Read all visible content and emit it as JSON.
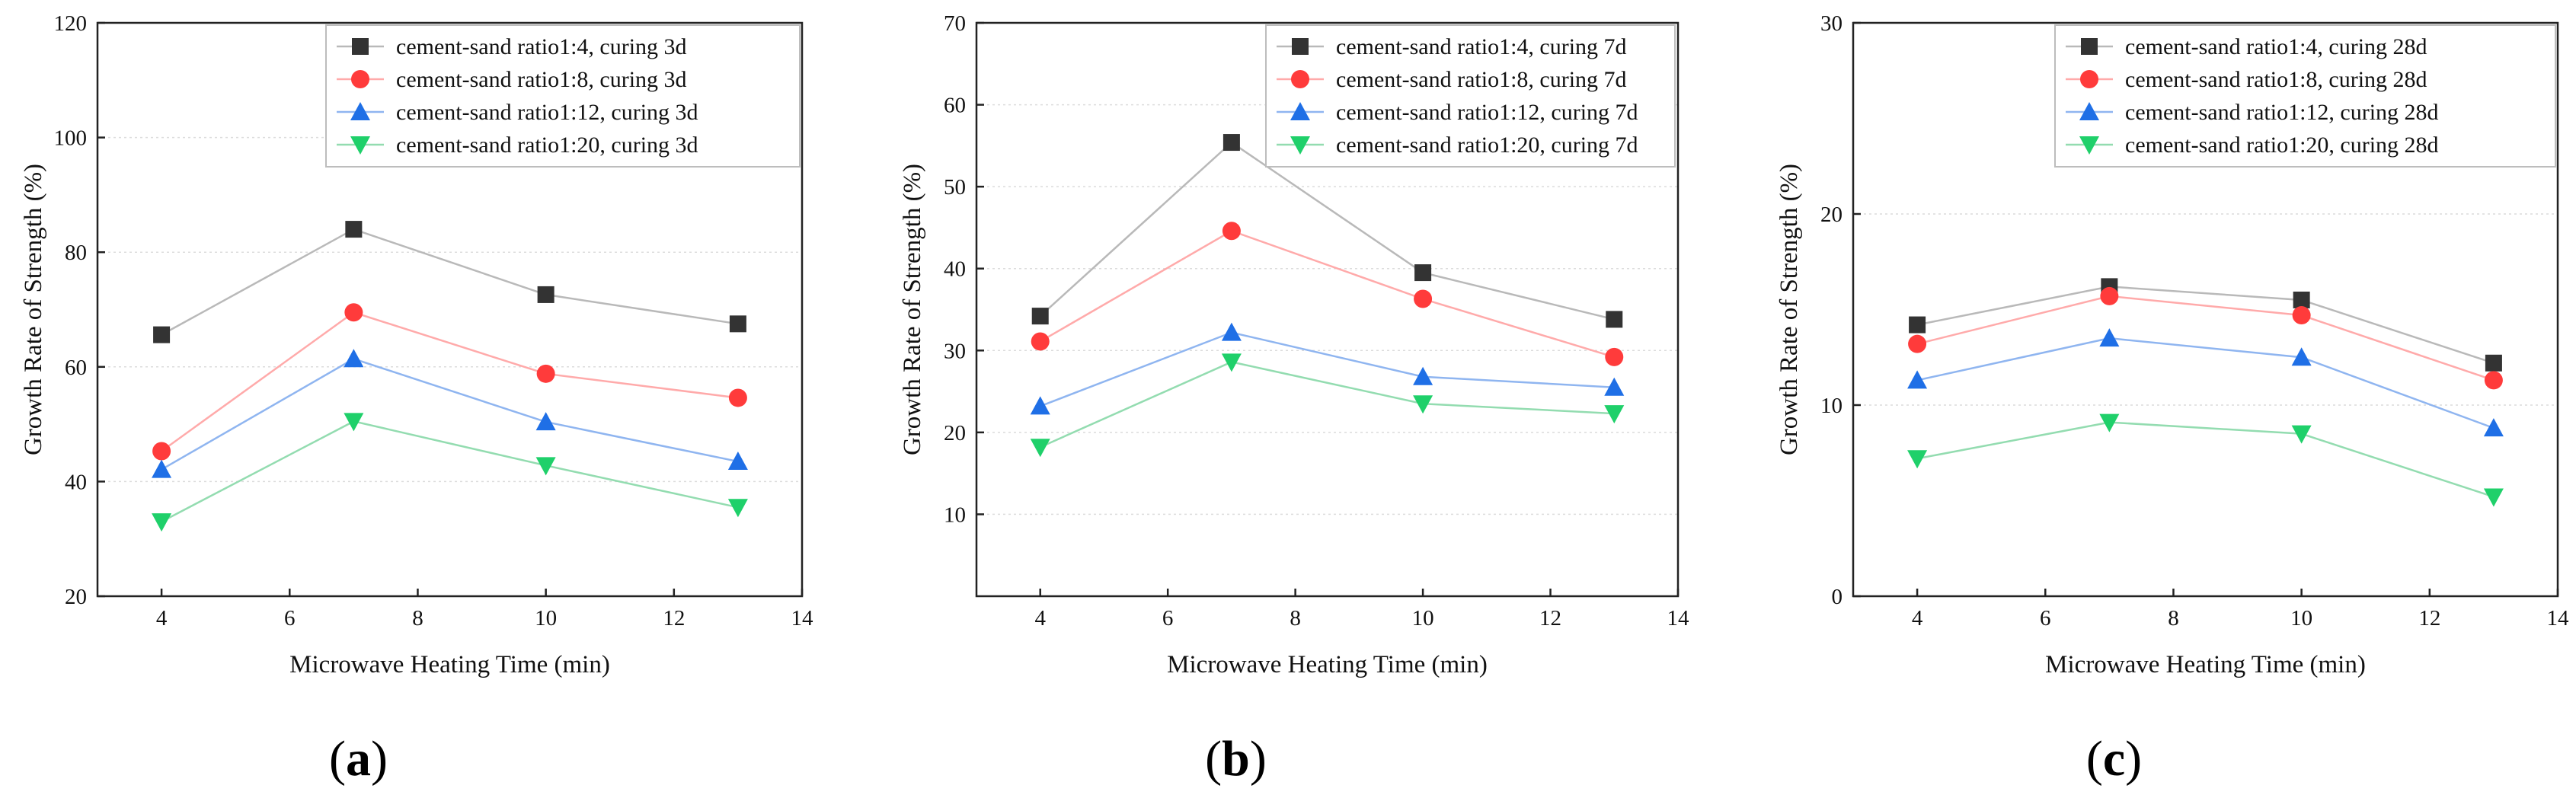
{
  "chart_data": [
    {
      "type": "line",
      "panel_label": "a",
      "xlabel": "Microwave Heating Time (min)",
      "ylabel": "Growth Rate of Strength (%)",
      "xlim": [
        3,
        14
      ],
      "ylim": [
        20,
        120
      ],
      "xticks": [
        "4",
        "6",
        "8",
        "10",
        "12",
        "14"
      ],
      "yticks": [
        "20",
        "40",
        "60",
        "80",
        "100",
        "120"
      ],
      "x": [
        4,
        7,
        10,
        13
      ],
      "series": [
        {
          "name": "cement-sand ratio1:4, curing 3d",
          "values": [
            65.6,
            84.0,
            72.6,
            67.5
          ]
        },
        {
          "name": "cement-sand ratio1:8, curing 3d",
          "values": [
            45.3,
            69.5,
            58.8,
            54.6
          ]
        },
        {
          "name": "cement-sand ratio1:12, curing 3d",
          "values": [
            42.1,
            61.4,
            50.4,
            43.5
          ]
        },
        {
          "name": "cement-sand ratio1:20, curing 3d",
          "values": [
            33.0,
            50.5,
            42.8,
            35.5
          ]
        }
      ],
      "grid": true,
      "legend": "top-right"
    },
    {
      "type": "line",
      "panel_label": "b",
      "xlabel": "Microwave Heating Time (min)",
      "ylabel": "Growth Rate of Strength (%)",
      "xlim": [
        3,
        14
      ],
      "ylim": [
        0,
        70
      ],
      "xticks": [
        "4",
        "6",
        "8",
        "10",
        "12",
        "14"
      ],
      "yticks": [
        "10",
        "20",
        "30",
        "40",
        "50",
        "60",
        "70"
      ],
      "x": [
        4,
        7,
        10,
        13
      ],
      "series": [
        {
          "name": "cement-sand ratio1:4, curing 7d",
          "values": [
            34.2,
            55.4,
            39.5,
            33.8
          ]
        },
        {
          "name": "cement-sand ratio1:8, curing 7d",
          "values": [
            31.1,
            44.6,
            36.3,
            29.2
          ]
        },
        {
          "name": "cement-sand ratio1:12, curing 7d",
          "values": [
            23.2,
            32.2,
            26.8,
            25.5
          ]
        },
        {
          "name": "cement-sand ratio1:20, curing 7d",
          "values": [
            18.2,
            28.6,
            23.5,
            22.3
          ]
        }
      ],
      "grid": true,
      "legend": "top-right"
    },
    {
      "type": "line",
      "panel_label": "c",
      "xlabel": "Microwave Heating Time (min)",
      "ylabel": "Growth Rate of Strength (%)",
      "xlim": [
        3,
        14
      ],
      "ylim": [
        0,
        30
      ],
      "xticks": [
        "4",
        "6",
        "8",
        "10",
        "12",
        "14"
      ],
      "yticks": [
        "0",
        "10",
        "20",
        "30"
      ],
      "x": [
        4,
        7,
        10,
        13
      ],
      "series": [
        {
          "name": "cement-sand ratio1:4, curing 28d",
          "values": [
            14.2,
            16.2,
            15.5,
            12.2
          ]
        },
        {
          "name": "cement-sand ratio1:8, curing 28d",
          "values": [
            13.2,
            15.7,
            14.7,
            11.3
          ]
        },
        {
          "name": "cement-sand ratio1:12, curing 28d",
          "values": [
            11.3,
            13.5,
            12.5,
            8.8
          ]
        },
        {
          "name": "cement-sand ratio1:20, curing 28d",
          "values": [
            7.2,
            9.1,
            8.5,
            5.2
          ]
        }
      ],
      "grid": true,
      "legend": "top-right"
    }
  ],
  "series_styles": [
    {
      "marker": "square",
      "marker_color": "#333333",
      "line_color": "#b9b9b9"
    },
    {
      "marker": "circle",
      "marker_color": "#ff3b3b",
      "line_color": "#ffaaaa"
    },
    {
      "marker": "triangle-up",
      "marker_color": "#1f6fe6",
      "line_color": "#8fb5f0"
    },
    {
      "marker": "triangle-down",
      "marker_color": "#1fd06a",
      "line_color": "#93dcb0"
    }
  ]
}
